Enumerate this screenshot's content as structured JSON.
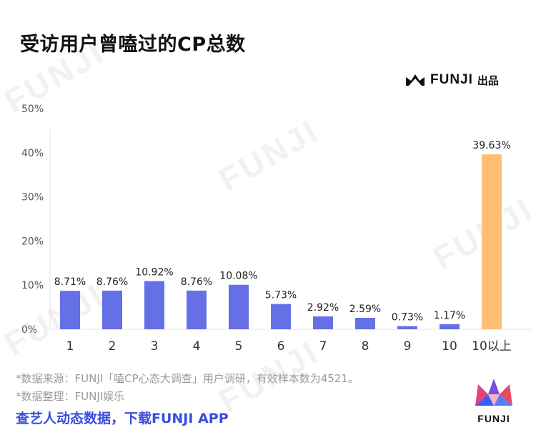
{
  "title": "受访用户曾嗑过的CP总数",
  "brand": {
    "name": "FUNJI",
    "suffix": "出品",
    "logo_text": "FUNJI"
  },
  "watermark": "FUNJI",
  "footnotes": [
    "*数据来源：FUNJI「嗑CP心态大调查」用户调研，有效样本数为4521。",
    "*数据整理：FUNJI娱乐"
  ],
  "cta": "查艺人动态数据，下载FUNJI APP",
  "colors": {
    "bar": "#6670e6",
    "highlight": "#ffbf73",
    "cta": "#3a4ddf"
  },
  "chart_data": {
    "type": "bar",
    "categories": [
      "1",
      "2",
      "3",
      "4",
      "5",
      "6",
      "7",
      "8",
      "9",
      "10",
      "10以上"
    ],
    "values": [
      8.71,
      8.76,
      10.92,
      8.76,
      10.08,
      5.73,
      2.92,
      2.59,
      0.73,
      1.17,
      39.63
    ],
    "data_labels": [
      "8.71%",
      "8.76%",
      "10.92%",
      "8.76%",
      "10.08%",
      "5.73%",
      "2.92%",
      "2.59%",
      "0.73%",
      "1.17%",
      "39.63%"
    ],
    "y_ticks": [
      "0%",
      "10%",
      "20%",
      "30%",
      "40%",
      "50%"
    ],
    "ylim": [
      0,
      50
    ],
    "highlight_index": 10,
    "grid": false,
    "legend": "none",
    "xlabel": "",
    "ylabel": ""
  }
}
